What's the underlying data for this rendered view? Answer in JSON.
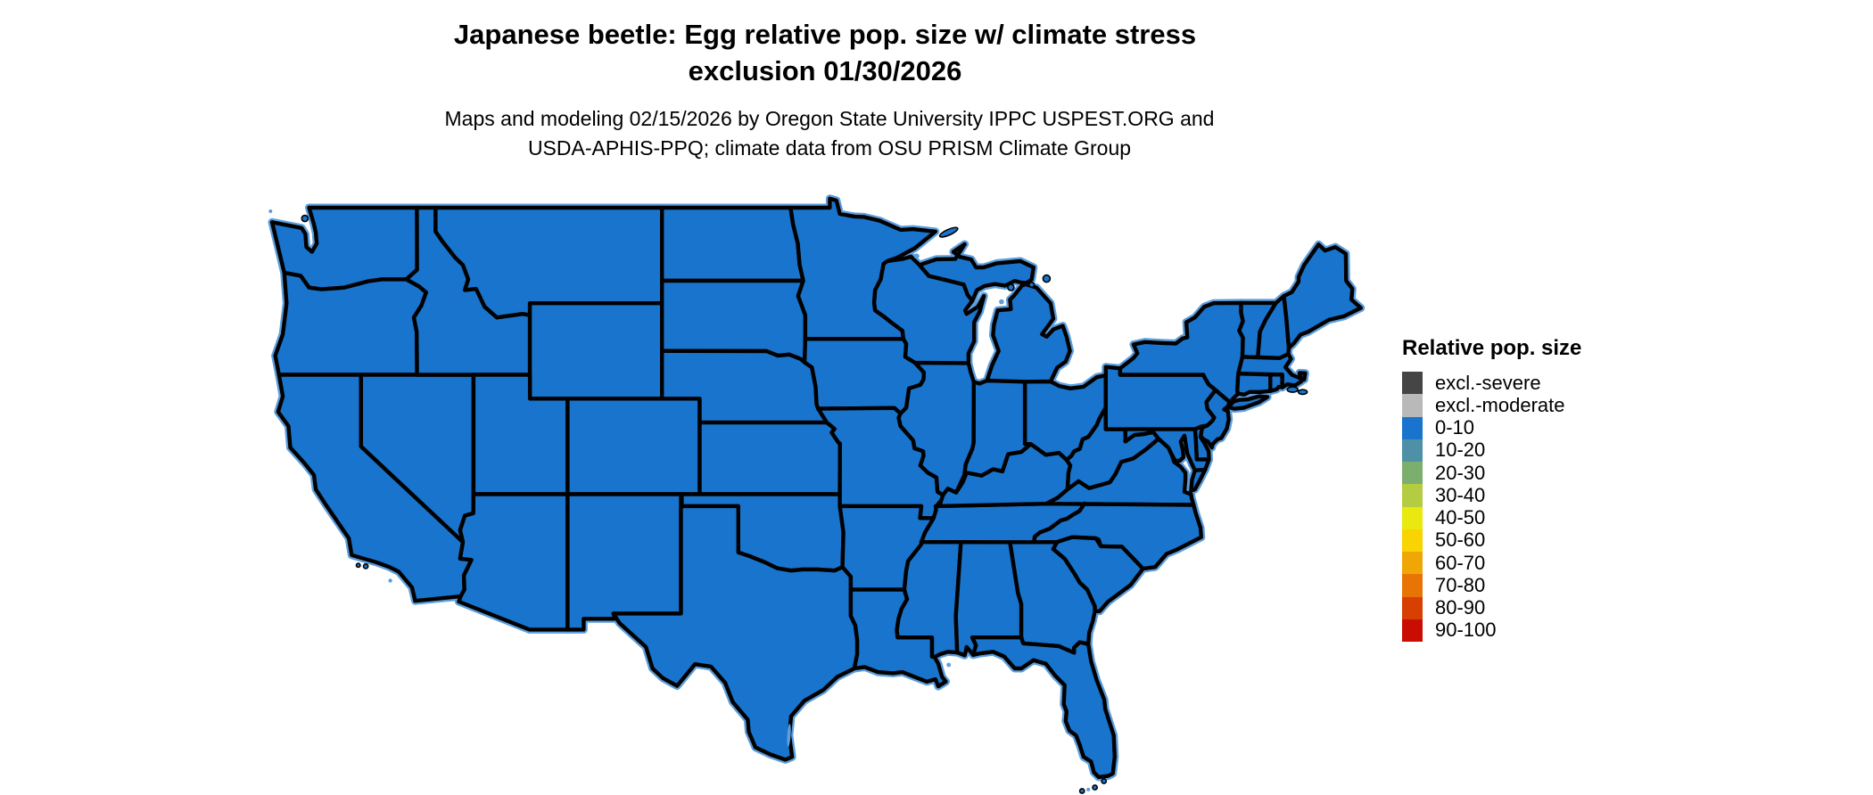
{
  "header": {
    "title_line1": "Japanese beetle: Egg relative pop. size w/ climate stress",
    "title_line2": "exclusion 01/30/2026",
    "subtitle_line1": "Maps and modeling 02/15/2026 by Oregon State University IPPC USPEST.ORG and",
    "subtitle_line2": "USDA-APHIS-PPQ; climate data from OSU PRISM Climate Group"
  },
  "map": {
    "fill_class_label": "0-10",
    "fill_color": "#1874CD",
    "border_color": "#000000",
    "coast_accent_color": "#5C9EDD",
    "background_color": "#FFFFFF"
  },
  "legend": {
    "title": "Relative pop. size",
    "items": [
      {
        "label": "excl.-severe",
        "color": "#454545"
      },
      {
        "label": "excl.-moderate",
        "color": "#B9B9B9"
      },
      {
        "label": "0-10",
        "color": "#1874CD"
      },
      {
        "label": "10-20",
        "color": "#4E91A6"
      },
      {
        "label": "20-30",
        "color": "#7CAE6E"
      },
      {
        "label": "30-40",
        "color": "#B3CC41"
      },
      {
        "label": "40-50",
        "color": "#EAE90F"
      },
      {
        "label": "50-60",
        "color": "#F8D402"
      },
      {
        "label": "60-70",
        "color": "#F0A705"
      },
      {
        "label": "70-80",
        "color": "#E87405"
      },
      {
        "label": "80-90",
        "color": "#D84002"
      },
      {
        "label": "90-100",
        "color": "#C90D02"
      }
    ]
  }
}
